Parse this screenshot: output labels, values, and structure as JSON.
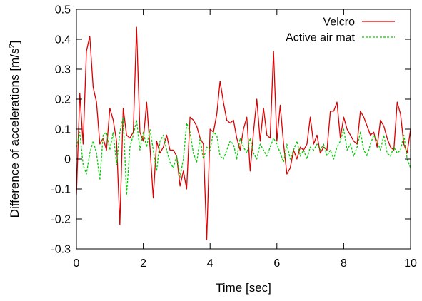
{
  "chart_data": {
    "type": "line",
    "xlabel": "Time [sec]",
    "ylabel_main": "Difference of accelerations [m/s",
    "ylabel_sup": "2",
    "ylabel_close": "]",
    "xlim": [
      0,
      10
    ],
    "ylim": [
      -0.3,
      0.5
    ],
    "xticks": [
      0,
      2,
      4,
      6,
      8,
      10
    ],
    "xtick_labels": [
      "0",
      "2",
      "4",
      "6",
      "8",
      "10"
    ],
    "yticks": [
      -0.3,
      -0.2,
      -0.1,
      0,
      0.1,
      0.2,
      0.3,
      0.4,
      0.5
    ],
    "ytick_labels": [
      "-0.3",
      "-0.2",
      "-0.1",
      "0",
      "0.1",
      "0.2",
      "0.3",
      "0.4",
      "0.5"
    ],
    "grid": false,
    "legend_position": "top-right",
    "series": [
      {
        "name": "Velcro",
        "color": "#dd0000",
        "dash": "solid",
        "x": [
          0,
          0.1,
          0.2,
          0.3,
          0.4,
          0.5,
          0.6,
          0.7,
          0.8,
          0.9,
          1.0,
          1.1,
          1.2,
          1.3,
          1.4,
          1.5,
          1.6,
          1.7,
          1.8,
          1.9,
          2.0,
          2.1,
          2.2,
          2.3,
          2.4,
          2.5,
          2.6,
          2.7,
          2.8,
          2.9,
          3.0,
          3.1,
          3.2,
          3.3,
          3.4,
          3.5,
          3.6,
          3.7,
          3.8,
          3.9,
          4.0,
          4.1,
          4.2,
          4.3,
          4.4,
          4.5,
          4.6,
          4.7,
          4.8,
          4.9,
          5.0,
          5.1,
          5.2,
          5.3,
          5.4,
          5.5,
          5.6,
          5.7,
          5.8,
          5.9,
          6.0,
          6.1,
          6.2,
          6.3,
          6.4,
          6.5,
          6.6,
          6.7,
          6.8,
          6.9,
          7.0,
          7.1,
          7.2,
          7.3,
          7.4,
          7.5,
          7.6,
          7.7,
          7.8,
          7.9,
          8.0,
          8.1,
          8.2,
          8.3,
          8.4,
          8.5,
          8.6,
          8.7,
          8.8,
          8.9,
          9.0,
          9.1,
          9.2,
          9.3,
          9.4,
          9.5,
          9.6,
          9.7,
          9.8,
          9.9,
          10.0
        ],
        "y": [
          -0.12,
          0.22,
          0.05,
          0.36,
          0.41,
          0.24,
          0.19,
          0.05,
          0.07,
          0.03,
          0.17,
          0.13,
          0.06,
          -0.22,
          0.17,
          0.08,
          0.07,
          0.09,
          0.44,
          0.09,
          0.06,
          0.19,
          0.04,
          -0.13,
          0.06,
          0.02,
          0.04,
          0.08,
          0.03,
          0.03,
          0.01,
          -0.09,
          -0.04,
          -0.1,
          0.14,
          0.13,
          0.11,
          0.07,
          0.05,
          -0.27,
          0.1,
          0.09,
          0.15,
          0.26,
          0.19,
          0.13,
          0.12,
          0.13,
          0.07,
          0.03,
          0.1,
          0.14,
          -0.04,
          0.09,
          0.2,
          0.06,
          0.17,
          0.08,
          0.07,
          0.36,
          0.06,
          0.18,
          0.05,
          -0.05,
          -0.03,
          0.03,
          0.0,
          0.04,
          0.03,
          0.05,
          0.14,
          0.05,
          0.08,
          0.02,
          0.04,
          0.03,
          0.16,
          0.16,
          0.19,
          0.07,
          0.14,
          0.1,
          0.08,
          0.06,
          0.05,
          0.16,
          0.14,
          0.11,
          0.08,
          0.09,
          0.04,
          0.13,
          0.11,
          0.07,
          0.04,
          0.03,
          0.19,
          0.15,
          0.05,
          0.02,
          0.1
        ]
      },
      {
        "name": "Active air mat",
        "color": "#00cc00",
        "dash": "dashed",
        "x": [
          0,
          0.1,
          0.2,
          0.3,
          0.4,
          0.5,
          0.6,
          0.7,
          0.8,
          0.9,
          1.0,
          1.1,
          1.2,
          1.3,
          1.4,
          1.5,
          1.6,
          1.7,
          1.8,
          1.9,
          2.0,
          2.1,
          2.2,
          2.3,
          2.4,
          2.5,
          2.6,
          2.7,
          2.8,
          2.9,
          3.0,
          3.1,
          3.2,
          3.3,
          3.4,
          3.5,
          3.6,
          3.7,
          3.8,
          3.9,
          4.0,
          4.1,
          4.2,
          4.3,
          4.4,
          4.5,
          4.6,
          4.7,
          4.8,
          4.9,
          5.0,
          5.1,
          5.2,
          5.3,
          5.4,
          5.5,
          5.6,
          5.7,
          5.8,
          5.9,
          6.0,
          6.1,
          6.2,
          6.3,
          6.4,
          6.5,
          6.6,
          6.7,
          6.8,
          6.9,
          7.0,
          7.1,
          7.2,
          7.3,
          7.4,
          7.5,
          7.6,
          7.7,
          7.8,
          7.9,
          8.0,
          8.1,
          8.2,
          8.3,
          8.4,
          8.5,
          8.6,
          8.7,
          8.8,
          8.9,
          9.0,
          9.1,
          9.2,
          9.3,
          9.4,
          9.5,
          9.6,
          9.7,
          9.8,
          9.9,
          10.0
        ],
        "y": [
          0.04,
          0.09,
          -0.02,
          -0.05,
          0.02,
          0.06,
          0.02,
          -0.07,
          0.08,
          0.09,
          0.03,
          0.09,
          -0.02,
          0.09,
          0.14,
          -0.12,
          0.04,
          0.08,
          0.13,
          0.03,
          0.09,
          0.04,
          0.1,
          0.03,
          -0.04,
          0.06,
          0.08,
          0.03,
          -0.01,
          -0.03,
          0.01,
          -0.06,
          0.0,
          0.12,
          0.09,
          0.02,
          -0.01,
          0.07,
          0.0,
          0.04,
          0.03,
          0.09,
          0.08,
          0.01,
          0.0,
          0.03,
          0.06,
          0.05,
          0.0,
          0.07,
          0.04,
          0.02,
          0.07,
          0.02,
          0.0,
          0.05,
          0.03,
          0.01,
          0.04,
          0.07,
          0.05,
          0.02,
          -0.01,
          0.05,
          0.0,
          0.03,
          0.06,
          0.01,
          0.03,
          0.0,
          0.04,
          0.03,
          0.05,
          0.03,
          0.05,
          0.01,
          0.03,
          0.0,
          0.04,
          0.06,
          0.1,
          0.03,
          0.05,
          0.01,
          0.04,
          0.09,
          0.03,
          0.01,
          0.05,
          0.08,
          0.06,
          0.03,
          0.08,
          0.02,
          0.01,
          0.04,
          0.02,
          0.03,
          0.08,
          0.0,
          -0.03
        ]
      }
    ]
  }
}
